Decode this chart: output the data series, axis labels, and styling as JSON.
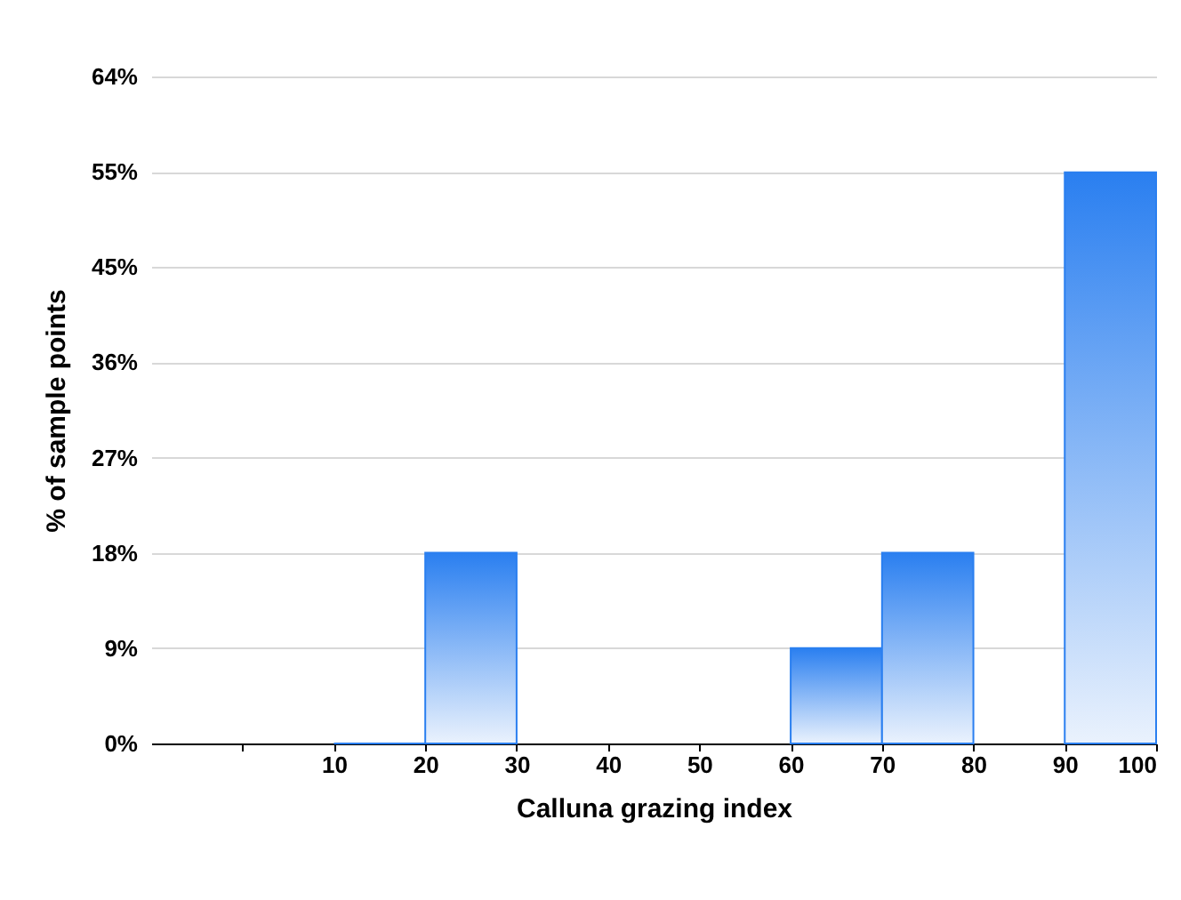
{
  "chart_data": {
    "type": "histogram",
    "xlabel": "Calluna grazing index",
    "ylabel": "% of sample points",
    "bins": [
      10,
      20,
      30,
      40,
      50,
      60,
      70,
      80,
      90,
      100
    ],
    "values": [
      0,
      18.2,
      null,
      null,
      null,
      9.1,
      18.2,
      null,
      54.5
    ],
    "color": "#2a7ff0",
    "xlim": [
      -10,
      100
    ],
    "xticks": [
      {
        "value": 0,
        "label": null
      },
      10,
      20,
      30,
      40,
      50,
      60,
      70,
      80,
      90,
      100
    ],
    "ylim": [
      0,
      63.64
    ],
    "yticks": [
      {
        "value": 0,
        "label": "0%"
      },
      {
        "value": 9.09,
        "label": "9%"
      },
      {
        "value": 18.18,
        "label": "18%"
      },
      {
        "value": 27.27,
        "label": "27%"
      },
      {
        "value": 36.36,
        "label": "36%"
      },
      {
        "value": 45.45,
        "label": "45%"
      },
      {
        "value": 54.55,
        "label": "55%"
      },
      {
        "value": 63.64,
        "label": "64%"
      }
    ],
    "grid": "y"
  }
}
